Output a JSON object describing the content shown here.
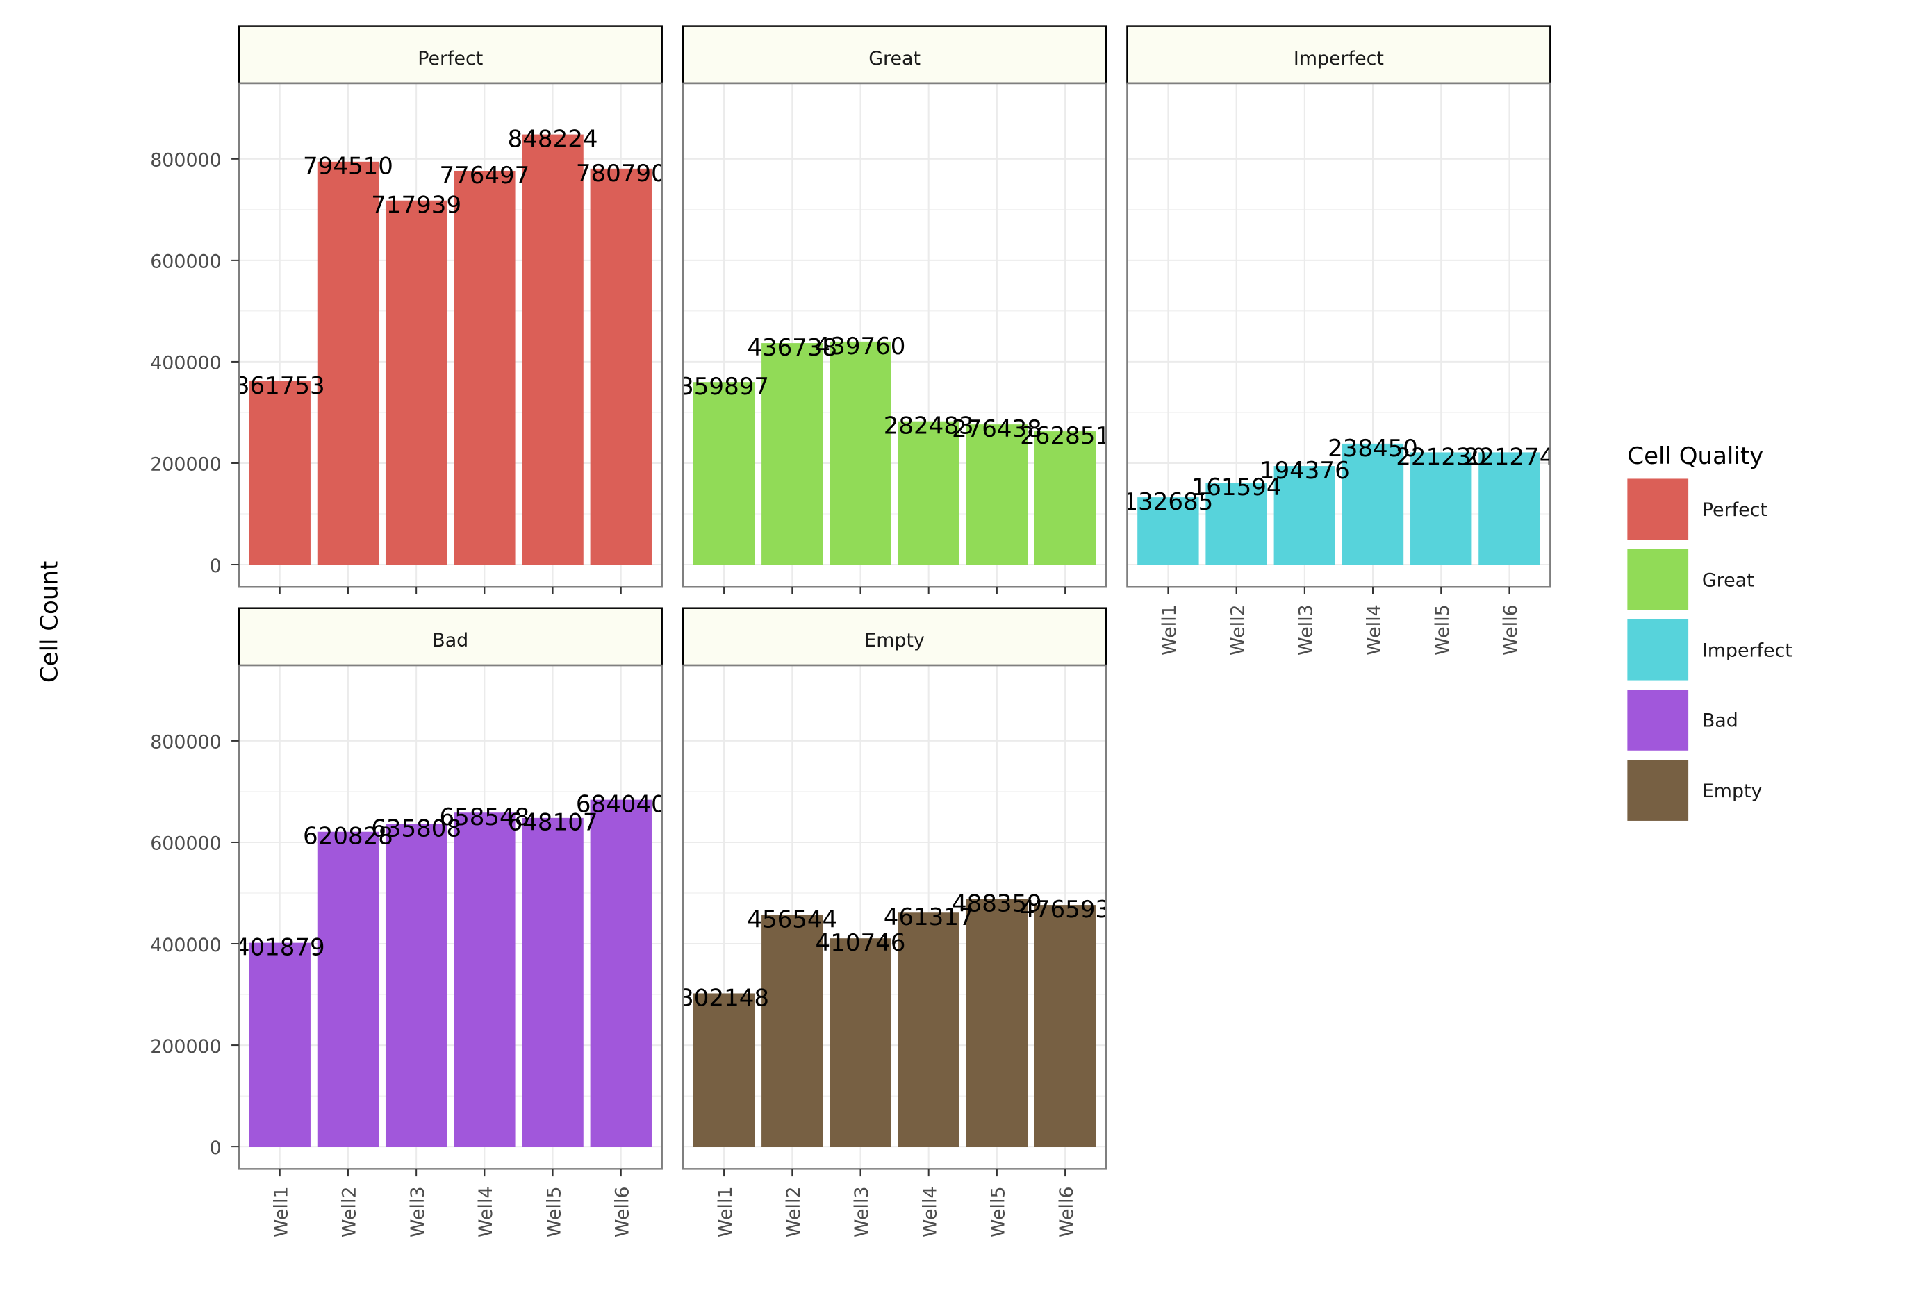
{
  "chart_data": {
    "type": "bar",
    "layout": "faceted",
    "ylabel": "Cell Count",
    "xlabel": "",
    "ylim": [
      0,
      900000
    ],
    "yticks": [
      0,
      200000,
      400000,
      600000,
      800000
    ],
    "ytick_labels": [
      "0",
      "200000",
      "400000",
      "600000",
      "800000"
    ],
    "categories": [
      "Well1",
      "Well2",
      "Well3",
      "Well4",
      "Well5",
      "Well6"
    ],
    "grid": true,
    "legend": {
      "title": "Cell Quality",
      "position": "right",
      "entries": [
        "Perfect",
        "Great",
        "Imperfect",
        "Bad",
        "Empty"
      ]
    },
    "colors": {
      "Perfect": "#db5f57",
      "Great": "#91db57",
      "Imperfect": "#57d3db",
      "Bad": "#a157db",
      "Empty": "#776043",
      "strip_bg": "#fcfdf2",
      "grid": "#ebebeb",
      "panel_border": "#7f7f7f"
    },
    "series": [
      {
        "name": "Perfect",
        "values": [
          361753,
          794510,
          717939,
          776497,
          848224,
          780790
        ],
        "labels": [
          "361753",
          "794510",
          "717939",
          "776497",
          "848224",
          "780790"
        ]
      },
      {
        "name": "Great",
        "values": [
          359897,
          436738,
          439760,
          282483,
          276438,
          262851
        ],
        "labels": [
          "359897",
          "436738",
          "439760",
          "282483",
          "276438",
          "262851"
        ]
      },
      {
        "name": "Imperfect",
        "values": [
          132685,
          161594,
          194376,
          238450,
          221230,
          221274
        ],
        "labels": [
          "132685",
          "161594",
          "194376",
          "238450",
          "221230",
          "221274"
        ]
      },
      {
        "name": "Bad",
        "values": [
          401879,
          620828,
          635808,
          658548,
          648107,
          684040
        ],
        "labels": [
          "401879",
          "620828",
          "635808",
          "658548",
          "648107",
          "684040"
        ]
      },
      {
        "name": "Empty",
        "values": [
          302148,
          456544,
          410746,
          461317,
          488359,
          476593
        ],
        "labels": [
          "302148",
          "456544",
          "410746",
          "461317",
          "488359",
          "476593"
        ]
      }
    ]
  }
}
